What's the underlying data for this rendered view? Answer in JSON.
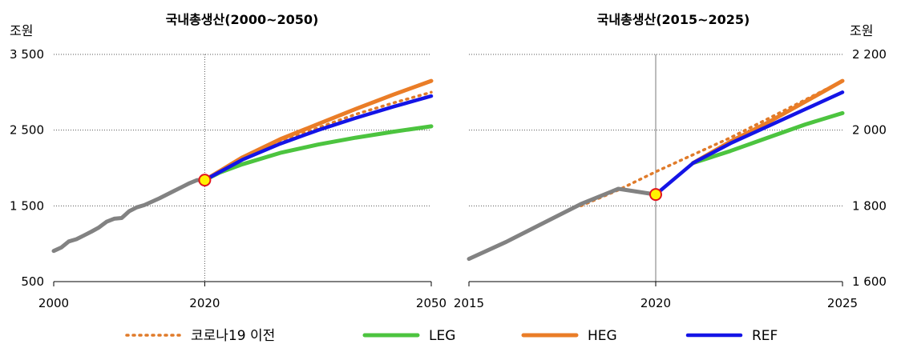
{
  "chart_data": [
    {
      "type": "line",
      "title": "국내총생산(2000~2050)",
      "ylabel": "조원",
      "xlim": [
        2000,
        2050
      ],
      "ylim": [
        500,
        3500
      ],
      "xticks": [
        2000,
        2020,
        2050
      ],
      "xtick_labels": [
        "2000",
        "2020",
        "2050"
      ],
      "yticks": [
        500,
        1500,
        2500,
        3500
      ],
      "ytick_labels": [
        "500",
        "1 500",
        "2 500",
        "3 500"
      ],
      "grid": "horizontal dotted",
      "marker": {
        "x": 2020,
        "y": 1840
      },
      "series": [
        {
          "key": "pre",
          "x": [
            2020,
            2025,
            2030,
            2035,
            2040,
            2045,
            2050
          ],
          "y": [
            1840,
            2130,
            2340,
            2530,
            2710,
            2860,
            3000
          ]
        },
        {
          "key": "leg",
          "x": [
            2020,
            2022,
            2025,
            2030,
            2035,
            2040,
            2045,
            2050
          ],
          "y": [
            1840,
            1940,
            2050,
            2200,
            2310,
            2400,
            2480,
            2550
          ]
        },
        {
          "key": "heg",
          "x": [
            2020,
            2025,
            2030,
            2035,
            2040,
            2045,
            2050
          ],
          "y": [
            1840,
            2140,
            2380,
            2580,
            2780,
            2970,
            3150
          ]
        },
        {
          "key": "ref",
          "x": [
            2020,
            2025,
            2030,
            2035,
            2040,
            2045,
            2050
          ],
          "y": [
            1840,
            2110,
            2320,
            2500,
            2660,
            2810,
            2950
          ]
        },
        {
          "key": "hist",
          "x": [
            2000,
            2001,
            2002,
            2003,
            2004,
            2005,
            2006,
            2007,
            2008,
            2009,
            2010,
            2011,
            2012,
            2013,
            2014,
            2015,
            2016,
            2017,
            2018,
            2019,
            2020
          ],
          "y": [
            905,
            950,
            1030,
            1060,
            1110,
            1160,
            1215,
            1290,
            1330,
            1340,
            1430,
            1480,
            1510,
            1555,
            1600,
            1650,
            1700,
            1750,
            1800,
            1840,
            1840
          ]
        }
      ]
    },
    {
      "type": "line",
      "title": "국내총생산(2015~2025)",
      "ylabel": "조원",
      "xlim": [
        2015,
        2025
      ],
      "ylim": [
        1600,
        2200
      ],
      "xticks": [
        2015,
        2020,
        2025
      ],
      "xtick_labels": [
        "2015",
        "2020",
        "2025"
      ],
      "yticks": [
        1600,
        1800,
        2000,
        2200
      ],
      "ytick_labels": [
        "1 600",
        "1 800",
        "2 000",
        "2 200"
      ],
      "grid": "horizontal dotted",
      "y_axis_side": "right",
      "marker": {
        "x": 2020,
        "y": 1830
      },
      "series": [
        {
          "key": "pre",
          "x": [
            2018,
            2019,
            2020,
            2021,
            2022,
            2023,
            2024,
            2025
          ],
          "y": [
            1800,
            1842,
            1890,
            1935,
            1980,
            2030,
            2080,
            2130
          ]
        },
        {
          "key": "leg",
          "x": [
            2021,
            2022,
            2023,
            2024,
            2025
          ],
          "y": [
            1913,
            1945,
            1980,
            2015,
            2045
          ]
        },
        {
          "key": "heg",
          "x": [
            2021,
            2022,
            2023,
            2024,
            2025
          ],
          "y": [
            1913,
            1970,
            2020,
            2075,
            2130
          ]
        },
        {
          "key": "ref",
          "x": [
            2020,
            2021,
            2022,
            2023,
            2024,
            2025
          ],
          "y": [
            1830,
            1913,
            1965,
            2010,
            2055,
            2100
          ]
        },
        {
          "key": "hist",
          "x": [
            2015,
            2016,
            2017,
            2018,
            2019,
            2020
          ],
          "y": [
            1660,
            1705,
            1755,
            1805,
            1845,
            1830
          ]
        }
      ]
    }
  ],
  "legend": [
    {
      "key": "pre",
      "label": "코로나19 이전"
    },
    {
      "key": "leg",
      "label": "LEG"
    },
    {
      "key": "heg",
      "label": "HEG"
    },
    {
      "key": "ref",
      "label": "REF"
    }
  ],
  "colors": {
    "pre": "#E07B2A",
    "leg": "#4CC43F",
    "heg": "#EA7D27",
    "ref": "#1414E6",
    "hist": "#828282",
    "marker_fill": "#FFF200",
    "marker_stroke": "#E3141C",
    "grid": "#555555",
    "axis": "#000000"
  }
}
